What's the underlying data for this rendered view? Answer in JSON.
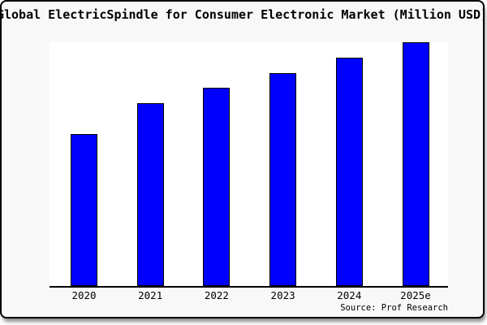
{
  "window": {
    "background_color": "#f8f8f8",
    "border_color": "#000000",
    "plot_background_color": "#ffffff"
  },
  "chart_data": {
    "type": "bar",
    "title": "Global ElectricSpindle for Consumer Electronic Market (Million USD)",
    "categories": [
      "2020",
      "2021",
      "2022",
      "2023",
      "2024",
      "2025e"
    ],
    "values": [
      62.5,
      75,
      81.25,
      87.5,
      93.75,
      100
    ],
    "values_note": "relative heights estimated from pixels; no y-axis scale shown in image",
    "xlabel": "",
    "ylabel": "",
    "ylim": [
      0,
      100
    ],
    "grid": false,
    "legend": false,
    "y_axis_visible": false,
    "x_axis_line_color": "#000000",
    "bar_color": "#0000ff",
    "bar_edge_color": "#000000"
  },
  "source": {
    "label": "Source: Prof Research"
  }
}
